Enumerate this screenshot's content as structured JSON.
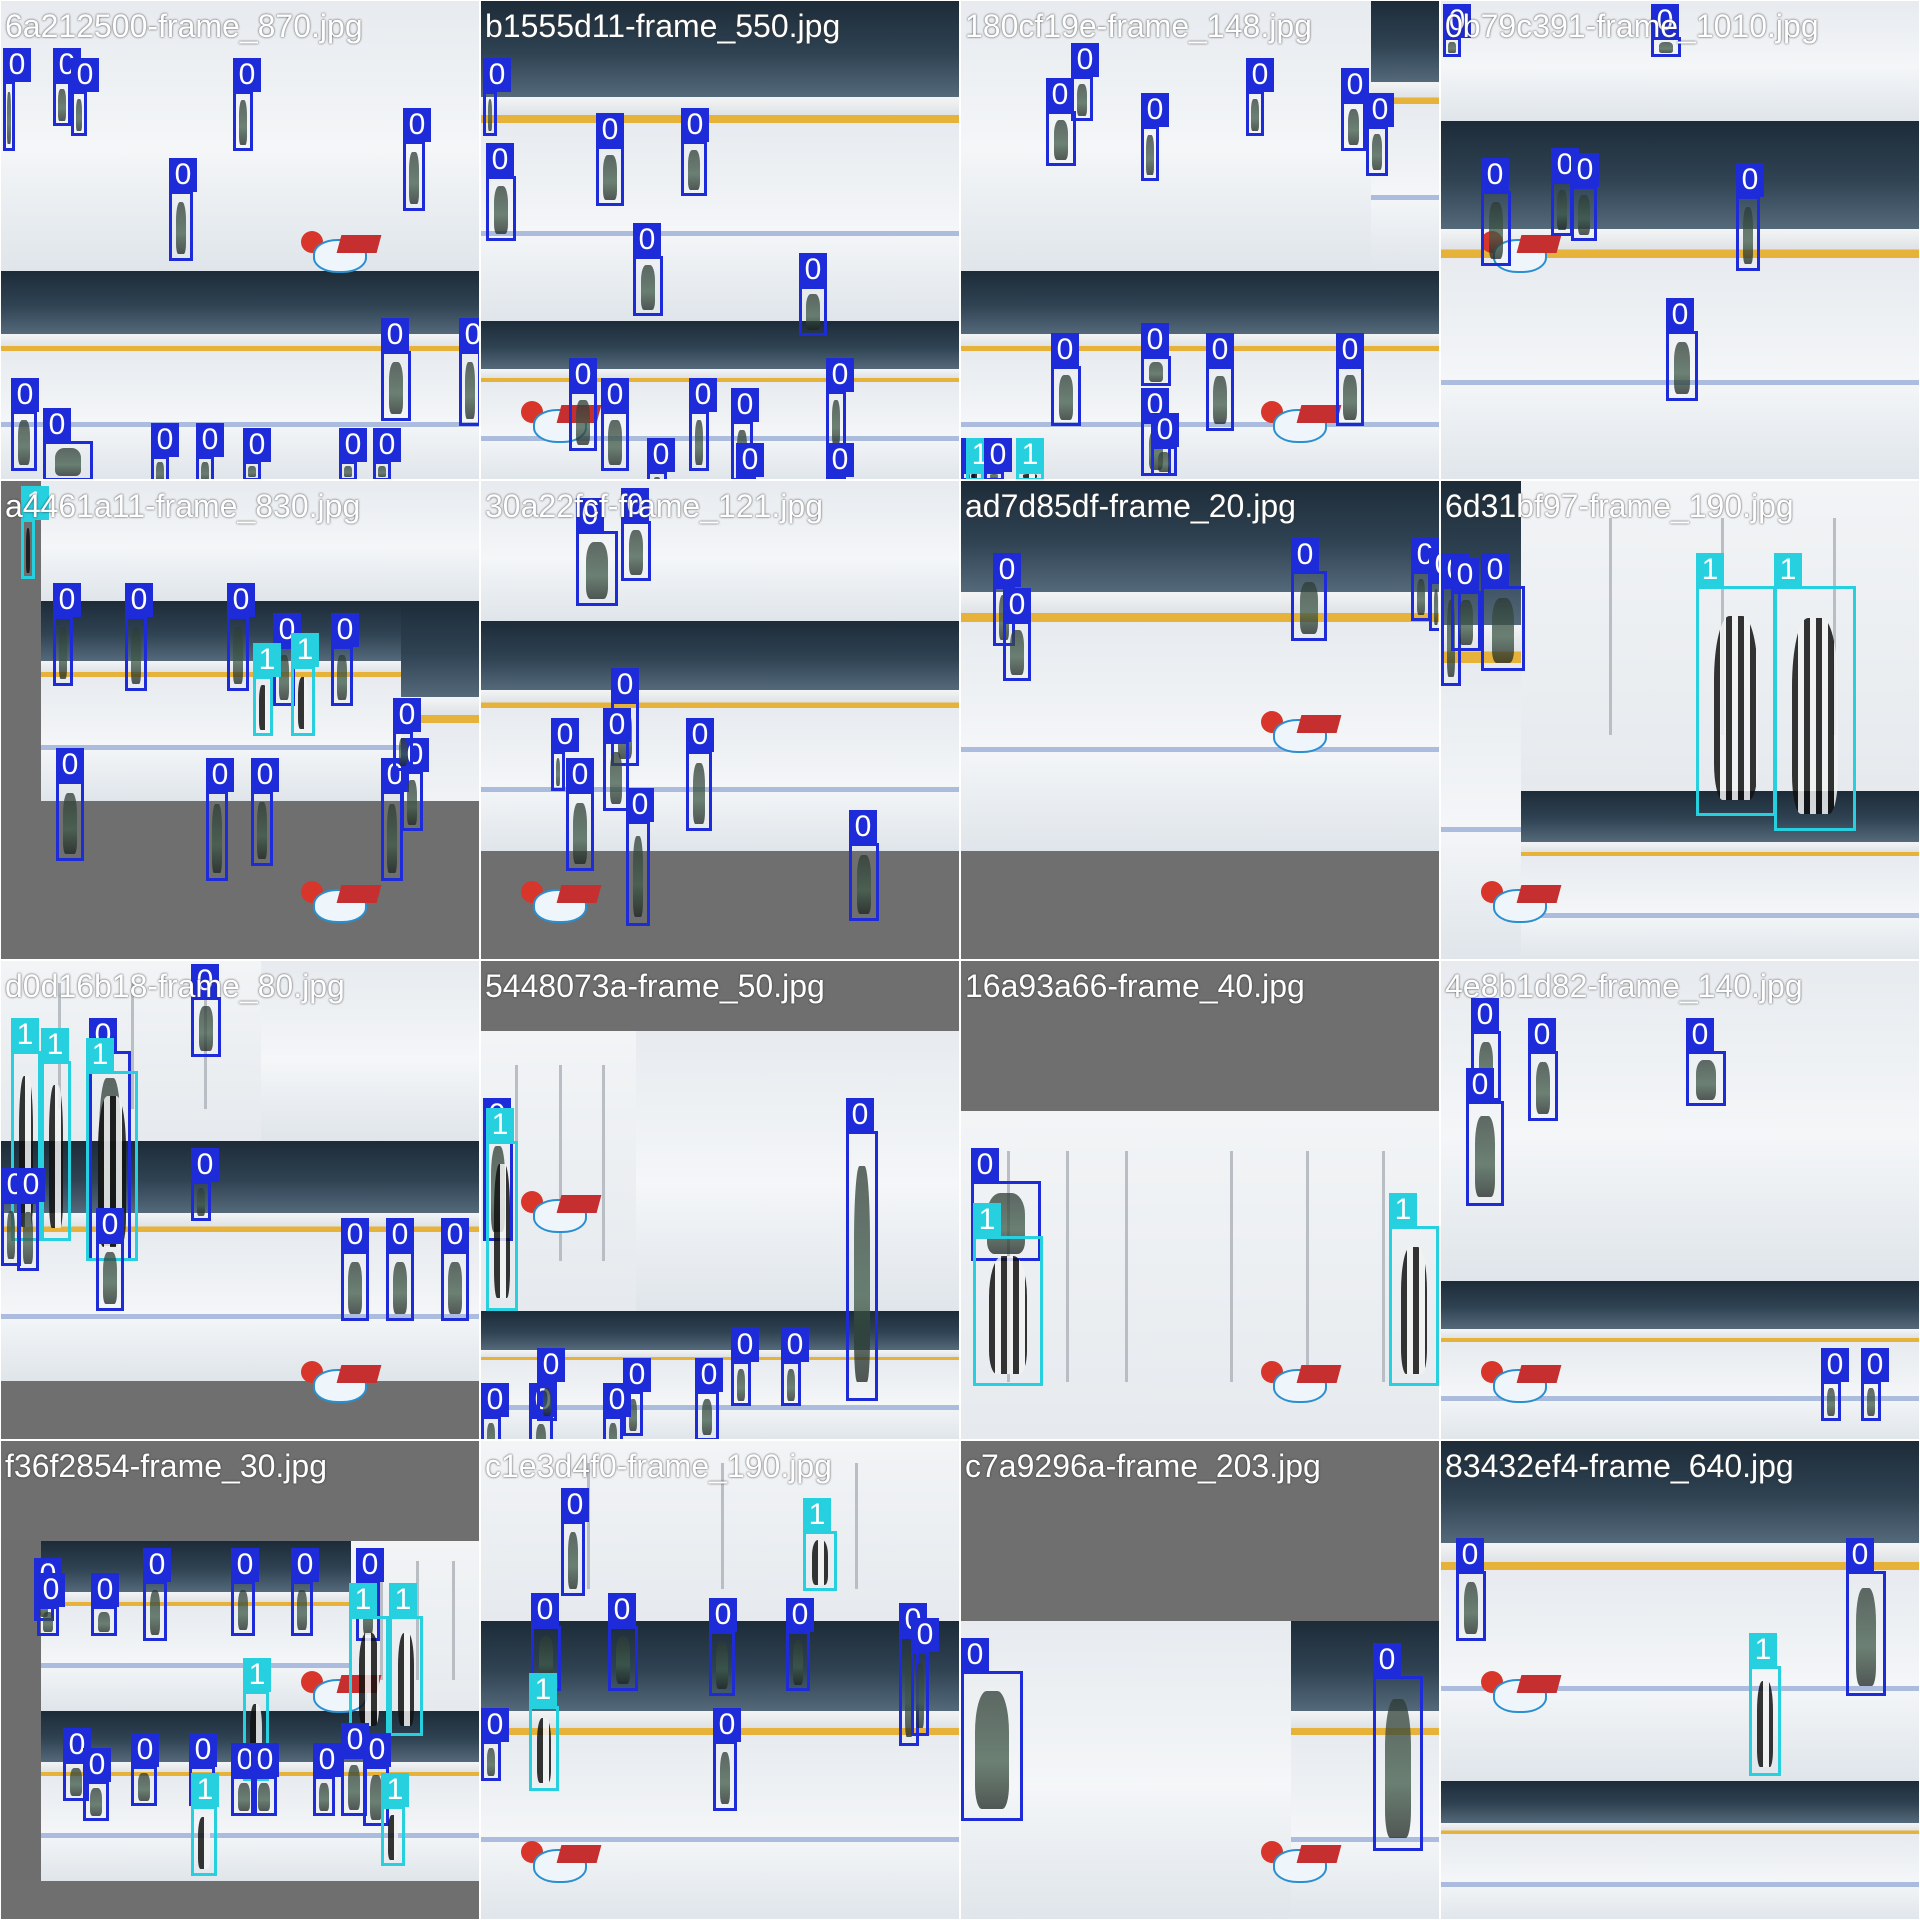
{
  "mosaic": {
    "tiles": [
      {
        "title": "6a212500-frame_870.jpg",
        "boxes": [
          {
            "cls": 0,
            "label": "0"
          },
          {
            "cls": 0,
            "label": "0"
          },
          {
            "cls": 0,
            "label": "0"
          },
          {
            "cls": 0,
            "label": "0"
          },
          {
            "cls": 0,
            "label": "0"
          },
          {
            "cls": 0,
            "label": "0"
          },
          {
            "cls": 0,
            "label": "0"
          },
          {
            "cls": 0,
            "label": "0"
          },
          {
            "cls": 0,
            "label": "0"
          },
          {
            "cls": 0,
            "label": "0"
          },
          {
            "cls": 0,
            "label": "0"
          },
          {
            "cls": 0,
            "label": "0"
          },
          {
            "cls": 0,
            "label": "0"
          },
          {
            "cls": 0,
            "label": "0"
          },
          {
            "cls": 0,
            "label": "0"
          }
        ]
      },
      {
        "title": "b1555d11-frame_550.jpg",
        "boxes": [
          {
            "cls": 0,
            "label": "0"
          },
          {
            "cls": 0,
            "label": "0"
          },
          {
            "cls": 0,
            "label": "0"
          },
          {
            "cls": 0,
            "label": "0"
          },
          {
            "cls": 0,
            "label": "0"
          },
          {
            "cls": 0,
            "label": "0"
          },
          {
            "cls": 0,
            "label": "0"
          },
          {
            "cls": 0,
            "label": "0"
          },
          {
            "cls": 0,
            "label": "0"
          },
          {
            "cls": 0,
            "label": "0"
          },
          {
            "cls": 0,
            "label": "0"
          },
          {
            "cls": 0,
            "label": "0"
          },
          {
            "cls": 0,
            "label": "0"
          },
          {
            "cls": 0,
            "label": "0"
          }
        ]
      },
      {
        "title": "180cf19e-frame_148.jpg",
        "boxes": [
          {
            "cls": 0,
            "label": "0"
          },
          {
            "cls": 0,
            "label": "0"
          },
          {
            "cls": 0,
            "label": "0"
          },
          {
            "cls": 0,
            "label": "0"
          },
          {
            "cls": 0,
            "label": "0"
          },
          {
            "cls": 0,
            "label": "0"
          },
          {
            "cls": 0,
            "label": "0"
          },
          {
            "cls": 0,
            "label": "0"
          },
          {
            "cls": 0,
            "label": "0"
          },
          {
            "cls": 0,
            "label": "0"
          },
          {
            "cls": 0,
            "label": "0"
          },
          {
            "cls": 0,
            "label": "0"
          },
          {
            "cls": 0,
            "label": "0"
          },
          {
            "cls": 1,
            "label": "1"
          },
          {
            "cls": 1,
            "label": "1"
          },
          {
            "cls": 0,
            "label": "0"
          }
        ]
      },
      {
        "title": "0b79c391-frame_1010.jpg",
        "boxes": [
          {
            "cls": 0,
            "label": "0"
          },
          {
            "cls": 0,
            "label": "0"
          },
          {
            "cls": 0,
            "label": "0"
          },
          {
            "cls": 0,
            "label": "0"
          },
          {
            "cls": 0,
            "label": "0"
          },
          {
            "cls": 0,
            "label": "0"
          },
          {
            "cls": 0,
            "label": "0"
          }
        ]
      },
      {
        "title": "a4461a11-frame_830.jpg",
        "boxes": [
          {
            "cls": 1,
            "label": "1"
          },
          {
            "cls": 0,
            "label": "0"
          },
          {
            "cls": 0,
            "label": "0"
          },
          {
            "cls": 0,
            "label": "0"
          },
          {
            "cls": 0,
            "label": "0"
          },
          {
            "cls": 0,
            "label": "0"
          },
          {
            "cls": 1,
            "label": "1"
          },
          {
            "cls": 1,
            "label": "1"
          },
          {
            "cls": 0,
            "label": "0"
          },
          {
            "cls": 0,
            "label": "0"
          },
          {
            "cls": 0,
            "label": "0"
          },
          {
            "cls": 0,
            "label": "0"
          },
          {
            "cls": 0,
            "label": "0"
          },
          {
            "cls": 0,
            "label": "0"
          }
        ]
      },
      {
        "title": "30a22fcf-frame_121.jpg",
        "boxes": [
          {
            "cls": 0,
            "label": "0"
          },
          {
            "cls": 0,
            "label": "0"
          },
          {
            "cls": 0,
            "label": "0"
          },
          {
            "cls": 0,
            "label": "0"
          },
          {
            "cls": 0,
            "label": "0"
          },
          {
            "cls": 0,
            "label": "0"
          },
          {
            "cls": 0,
            "label": "0"
          },
          {
            "cls": 0,
            "label": "0"
          },
          {
            "cls": 0,
            "label": "0"
          }
        ]
      },
      {
        "title": "ad7d85df-frame_20.jpg",
        "boxes": [
          {
            "cls": 0,
            "label": "0"
          },
          {
            "cls": 0,
            "label": "0"
          },
          {
            "cls": 0,
            "label": "0"
          },
          {
            "cls": 0,
            "label": "0"
          },
          {
            "cls": 0,
            "label": "0"
          }
        ]
      },
      {
        "title": "6d31bf97-frame_190.jpg",
        "boxes": [
          {
            "cls": 0,
            "label": "0"
          },
          {
            "cls": 0,
            "label": "0"
          },
          {
            "cls": 0,
            "label": "0"
          },
          {
            "cls": 1,
            "label": "1"
          },
          {
            "cls": 1,
            "label": "1"
          },
          {
            "cls": 0,
            "label": "0"
          },
          {
            "cls": 0,
            "label": "0"
          },
          {
            "cls": 0,
            "label": "0"
          },
          {
            "cls": 0,
            "label": "0"
          },
          {
            "cls": 0,
            "label": "0"
          }
        ]
      },
      {
        "title": "d0d16b18-frame_80.jpg",
        "boxes": [
          {
            "cls": 1,
            "label": "1"
          },
          {
            "cls": 1,
            "label": "1"
          },
          {
            "cls": 0,
            "label": "0"
          },
          {
            "cls": 1,
            "label": "1"
          },
          {
            "cls": 0,
            "label": "0"
          },
          {
            "cls": 0,
            "label": "0"
          },
          {
            "cls": 0,
            "label": "0"
          },
          {
            "cls": 0,
            "label": "0"
          },
          {
            "cls": 0,
            "label": "0"
          },
          {
            "cls": 0,
            "label": "0"
          },
          {
            "cls": 0,
            "label": "0"
          },
          {
            "cls": 0,
            "label": "0"
          }
        ]
      },
      {
        "title": "5448073a-frame_50.jpg",
        "boxes": [
          {
            "cls": 0,
            "label": "0"
          },
          {
            "cls": 1,
            "label": "1"
          },
          {
            "cls": 0,
            "label": "0"
          },
          {
            "cls": 0,
            "label": "0"
          },
          {
            "cls": 0,
            "label": "0"
          },
          {
            "cls": 0,
            "label": "0"
          },
          {
            "cls": 0,
            "label": "0"
          },
          {
            "cls": 0,
            "label": "0"
          },
          {
            "cls": 0,
            "label": "0"
          },
          {
            "cls": 0,
            "label": "0"
          },
          {
            "cls": 0,
            "label": "0"
          },
          {
            "cls": 0,
            "label": "0"
          }
        ]
      },
      {
        "title": "16a93a66-frame_40.jpg",
        "boxes": [
          {
            "cls": 0,
            "label": "0"
          },
          {
            "cls": 1,
            "label": "1"
          },
          {
            "cls": 1,
            "label": "1"
          }
        ]
      },
      {
        "title": "4e8b1d82-frame_140.jpg",
        "boxes": [
          {
            "cls": 0,
            "label": "0"
          },
          {
            "cls": 0,
            "label": "0"
          },
          {
            "cls": 0,
            "label": "0"
          },
          {
            "cls": 0,
            "label": "0"
          },
          {
            "cls": 0,
            "label": "0"
          },
          {
            "cls": 0,
            "label": "0"
          }
        ]
      },
      {
        "title": "f36f2854-frame_30.jpg",
        "boxes": [
          {
            "cls": 0,
            "label": "0"
          },
          {
            "cls": 0,
            "label": "0"
          },
          {
            "cls": 0,
            "label": "0"
          },
          {
            "cls": 0,
            "label": "0"
          },
          {
            "cls": 0,
            "label": "0"
          },
          {
            "cls": 0,
            "label": "0"
          },
          {
            "cls": 0,
            "label": "0"
          },
          {
            "cls": 1,
            "label": "1"
          },
          {
            "cls": 1,
            "label": "1"
          },
          {
            "cls": 1,
            "label": "1"
          },
          {
            "cls": 0,
            "label": "0"
          },
          {
            "cls": 0,
            "label": "0"
          },
          {
            "cls": 0,
            "label": "0"
          },
          {
            "cls": 0,
            "label": "0"
          },
          {
            "cls": 0,
            "label": "0"
          },
          {
            "cls": 0,
            "label": "0"
          },
          {
            "cls": 0,
            "label": "0"
          },
          {
            "cls": 0,
            "label": "0"
          },
          {
            "cls": 0,
            "label": "0"
          },
          {
            "cls": 1,
            "label": "1"
          },
          {
            "cls": 1,
            "label": "1"
          }
        ]
      },
      {
        "title": "c1e3d4f0-frame_190.jpg",
        "boxes": [
          {
            "cls": 0,
            "label": "0"
          },
          {
            "cls": 1,
            "label": "1"
          },
          {
            "cls": 0,
            "label": "0"
          },
          {
            "cls": 0,
            "label": "0"
          },
          {
            "cls": 0,
            "label": "0"
          },
          {
            "cls": 0,
            "label": "0"
          },
          {
            "cls": 0,
            "label": "0"
          },
          {
            "cls": 0,
            "label": "0"
          },
          {
            "cls": 1,
            "label": "1"
          },
          {
            "cls": 0,
            "label": "0"
          },
          {
            "cls": 0,
            "label": "0"
          }
        ]
      },
      {
        "title": "c7a9296a-frame_203.jpg",
        "boxes": [
          {
            "cls": 0,
            "label": "0"
          },
          {
            "cls": 0,
            "label": "0"
          }
        ]
      },
      {
        "title": "83432ef4-frame_640.jpg",
        "boxes": [
          {
            "cls": 0,
            "label": "0"
          },
          {
            "cls": 0,
            "label": "0"
          },
          {
            "cls": 1,
            "label": "1"
          }
        ]
      }
    ]
  },
  "colors": {
    "class_0": "#1e2bd8",
    "class_1": "#26d0df",
    "padding_gray": "#6f6f6f"
  }
}
